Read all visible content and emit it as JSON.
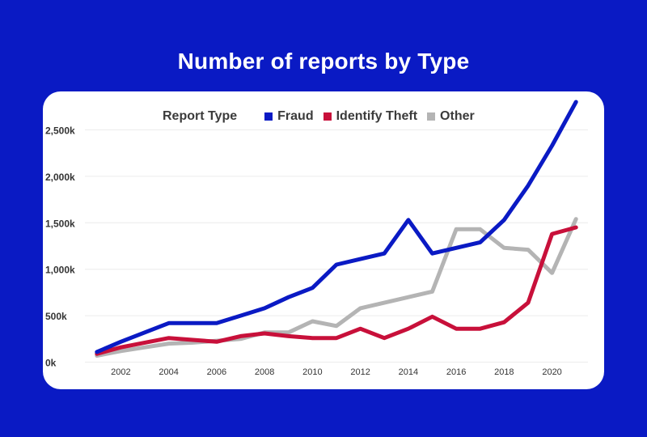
{
  "page": {
    "title": "Number of reports by Type",
    "background": "#0a1ac4",
    "card_background": "#ffffff"
  },
  "chart_data": {
    "type": "line",
    "title": "Number of reports by Type",
    "xlabel": "",
    "ylabel": "",
    "legend_title": "Report Type",
    "legend_position": "top",
    "x": [
      2001,
      2002,
      2003,
      2004,
      2005,
      2006,
      2007,
      2008,
      2009,
      2010,
      2011,
      2012,
      2013,
      2014,
      2015,
      2016,
      2017,
      2018,
      2019,
      2020,
      2021
    ],
    "x_ticks": [
      2002,
      2004,
      2006,
      2008,
      2010,
      2012,
      2014,
      2016,
      2018,
      2020
    ],
    "y_ticks": [
      {
        "value": 0,
        "label": "0k"
      },
      {
        "value": 500,
        "label": "500k"
      },
      {
        "value": 1000,
        "label": "1,000k"
      },
      {
        "value": 1500,
        "label": "1,500k"
      },
      {
        "value": 2000,
        "label": "2,000k"
      },
      {
        "value": 2500,
        "label": "2,500k"
      }
    ],
    "xlim": [
      2000.5,
      2021.5
    ],
    "ylim": [
      -30,
      2800
    ],
    "grid": true,
    "series": [
      {
        "name": "Fraud",
        "color": "#0a1ac4",
        "values": [
          110,
          220,
          320,
          420,
          420,
          420,
          500,
          580,
          700,
          800,
          1050,
          1110,
          1170,
          1530,
          1170,
          1230,
          1290,
          1530,
          1900,
          2330,
          2800
        ]
      },
      {
        "name": "Identify Theft",
        "color": "#c8103a",
        "values": [
          90,
          160,
          210,
          260,
          240,
          220,
          280,
          310,
          280,
          260,
          260,
          360,
          260,
          360,
          490,
          360,
          360,
          430,
          640,
          1380,
          1450
        ]
      },
      {
        "name": "Other",
        "color": "#b4b4b4",
        "values": [
          70,
          120,
          160,
          200,
          210,
          230,
          250,
          320,
          320,
          440,
          390,
          580,
          640,
          700,
          760,
          1430,
          1430,
          1230,
          1210,
          960,
          1540
        ]
      }
    ]
  }
}
